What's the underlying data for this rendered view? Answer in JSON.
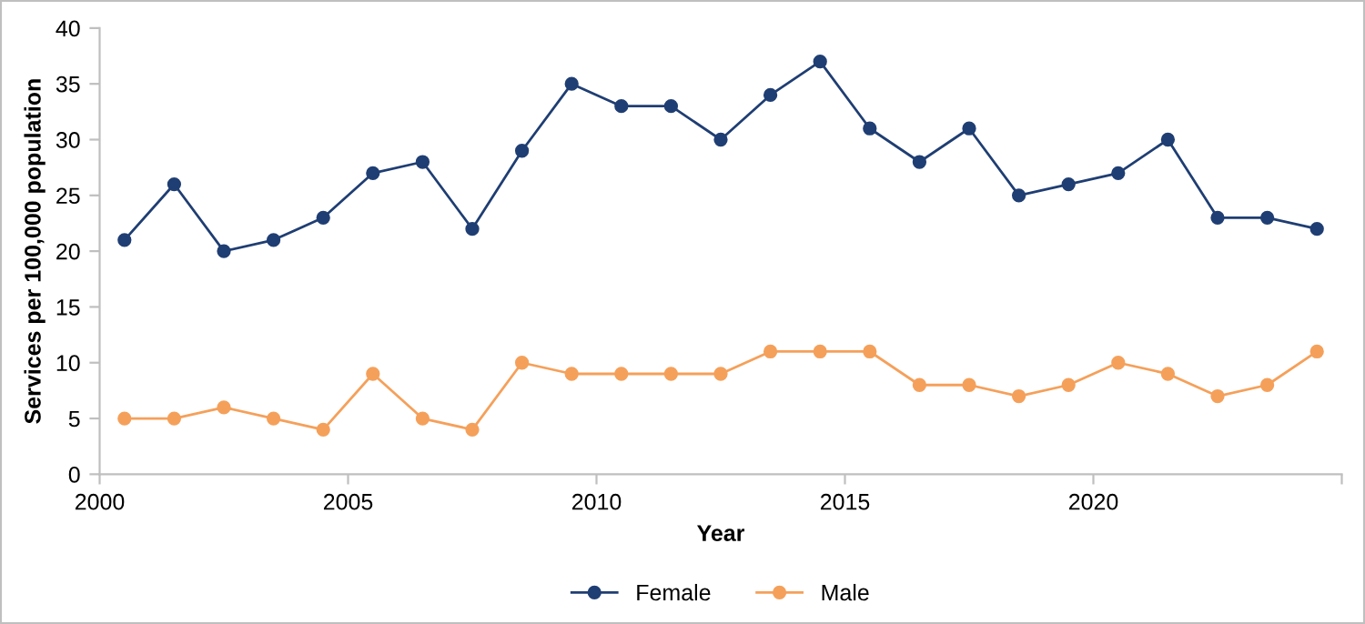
{
  "chart_data": {
    "type": "line",
    "xlabel": "Year",
    "ylabel": "Services per 100,000 population",
    "x": [
      2000.5,
      2001.5,
      2002.5,
      2003.5,
      2004.5,
      2005.5,
      2006.5,
      2007.5,
      2008.5,
      2009.5,
      2010.5,
      2011.5,
      2012.5,
      2013.5,
      2014.5,
      2015.5,
      2016.5,
      2017.5,
      2018.5,
      2019.5,
      2020.5,
      2021.5,
      2022.5,
      2023.5,
      2024.5
    ],
    "series": [
      {
        "name": "Female",
        "color": "#1f3e73",
        "values": [
          21,
          26,
          20,
          21,
          23,
          27,
          28,
          22,
          29,
          35,
          33,
          33,
          30,
          34,
          37,
          31,
          28,
          31,
          25,
          26,
          27,
          30,
          23,
          23,
          22
        ]
      },
      {
        "name": "Male",
        "color": "#f5a05a",
        "values": [
          5,
          5,
          6,
          5,
          4,
          9,
          5,
          4,
          10,
          9,
          9,
          9,
          9,
          11,
          11,
          11,
          8,
          8,
          7,
          8,
          10,
          9,
          7,
          8,
          11
        ]
      }
    ],
    "xlim": [
      2000,
      2025
    ],
    "xticks": [
      2000,
      2005,
      2010,
      2015,
      2020,
      {
        "value": 2025,
        "label": null
      }
    ],
    "ylim": [
      0,
      40
    ],
    "yticks": [
      0,
      5,
      10,
      15,
      20,
      25,
      30,
      35,
      40
    ],
    "grid": false,
    "legend": "bottom",
    "marker": "circle",
    "line_style": "solid"
  }
}
